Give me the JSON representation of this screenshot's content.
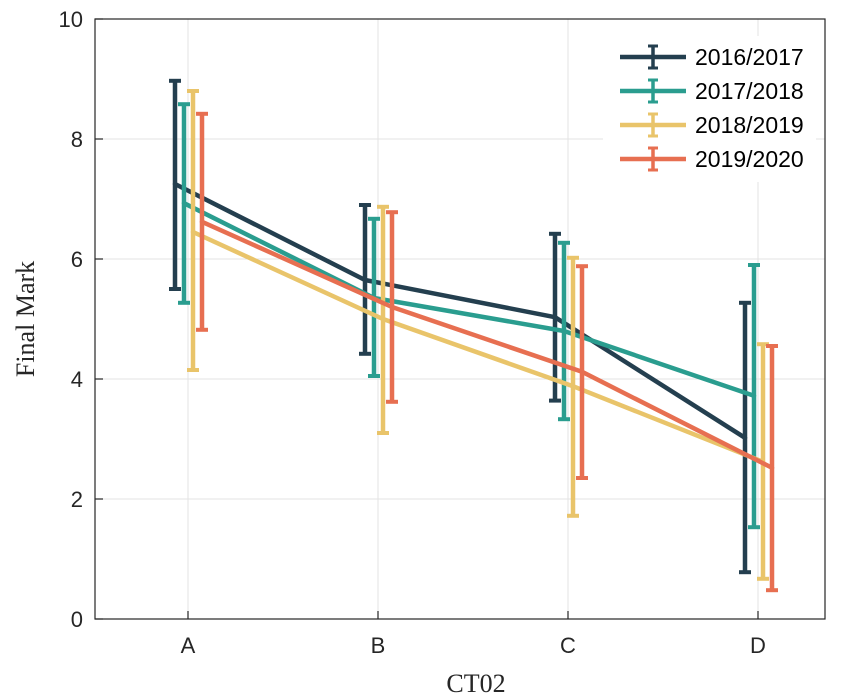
{
  "chart_data": {
    "type": "line",
    "xlabel": "CT02",
    "ylabel": "Final Mark",
    "categories": [
      "A",
      "B",
      "C",
      "D"
    ],
    "ylim": [
      0,
      10
    ],
    "yticks": [
      0,
      2,
      4,
      6,
      8,
      10
    ],
    "grid": true,
    "error_bars": true,
    "legend_position": "top-right",
    "series": [
      {
        "name": "2016/2017",
        "color": "#243f4f",
        "values": [
          7.25,
          5.65,
          5.03,
          3.02
        ],
        "lower": [
          5.5,
          4.42,
          3.64,
          0.78
        ],
        "upper": [
          8.97,
          6.9,
          6.42,
          5.27
        ]
      },
      {
        "name": "2017/2018",
        "color": "#2a9d8f",
        "values": [
          6.93,
          5.35,
          4.8,
          3.72
        ],
        "lower": [
          5.27,
          4.05,
          3.33,
          1.53
        ],
        "upper": [
          8.58,
          6.67,
          6.27,
          5.9
        ]
      },
      {
        "name": "2018/2019",
        "color": "#e9c46a",
        "values": [
          6.45,
          5.0,
          3.88,
          2.62
        ],
        "lower": [
          4.15,
          3.1,
          1.72,
          0.67
        ],
        "upper": [
          8.8,
          6.87,
          6.02,
          4.58
        ]
      },
      {
        "name": "2019/2020",
        "color": "#e76f51",
        "values": [
          6.62,
          5.2,
          4.12,
          2.52
        ],
        "lower": [
          4.82,
          3.62,
          2.35,
          0.48
        ],
        "upper": [
          8.42,
          6.78,
          5.88,
          4.55
        ]
      }
    ]
  }
}
